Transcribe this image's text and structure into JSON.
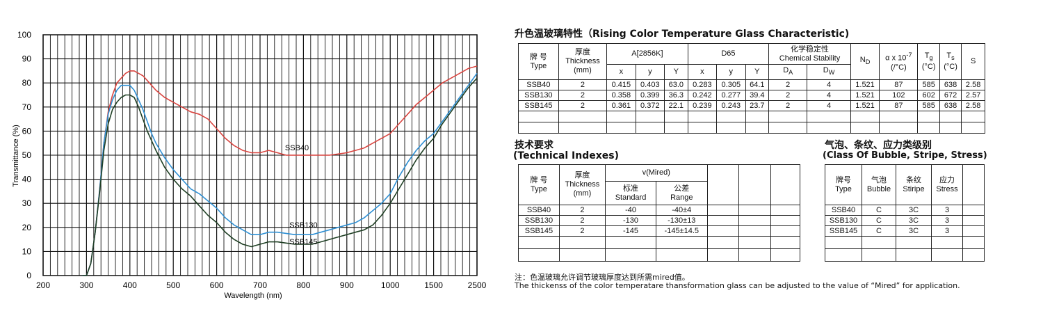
{
  "chart_data": {
    "type": "line",
    "xlabel": "Wavelength (nm)",
    "ylabel": "Transmittance (%)",
    "x_ticks": [
      "200",
      "300",
      "400",
      "500",
      "600",
      "700",
      "800",
      "900",
      "1000",
      "1500",
      "2500"
    ],
    "y_ticks": [
      "0",
      "10",
      "20",
      "30",
      "40",
      "50",
      "60",
      "70",
      "80",
      "90",
      "100"
    ],
    "ylim": [
      0,
      100
    ],
    "grid": true,
    "series": [
      {
        "name": "SSB40",
        "color": "#d9443f",
        "label_at": [
          785,
          52
        ],
        "x": [
          290,
          300,
          310,
          320,
          330,
          340,
          350,
          360,
          370,
          380,
          390,
          400,
          410,
          420,
          430,
          440,
          450,
          460,
          480,
          500,
          520,
          540,
          560,
          580,
          600,
          620,
          640,
          660,
          680,
          700,
          720,
          740,
          760,
          780,
          800,
          820,
          840,
          860,
          880,
          900,
          920,
          940,
          960,
          980,
          1000,
          1100,
          1200,
          1300,
          1400,
          1500,
          1700,
          1900,
          2100,
          2300,
          2500
        ],
        "y": [
          0,
          0,
          5,
          18,
          35,
          55,
          68,
          75,
          80,
          82,
          84,
          85,
          85,
          84,
          83,
          81,
          79,
          77,
          74,
          72,
          70,
          68,
          67,
          65,
          61,
          57,
          54,
          52,
          51,
          51,
          52,
          51,
          50,
          50,
          50,
          50,
          50,
          50,
          50.5,
          51,
          52,
          53,
          55,
          57,
          59,
          63,
          67,
          71,
          74,
          77,
          80,
          82,
          84,
          86,
          87
        ]
      },
      {
        "name": "SSB130",
        "color": "#2e8fd3",
        "label_at": [
          800,
          20
        ],
        "x": [
          290,
          300,
          310,
          320,
          330,
          340,
          350,
          360,
          370,
          380,
          390,
          400,
          410,
          420,
          430,
          440,
          450,
          460,
          480,
          500,
          520,
          540,
          560,
          580,
          600,
          620,
          640,
          660,
          680,
          700,
          720,
          740,
          760,
          780,
          800,
          820,
          840,
          860,
          880,
          900,
          920,
          940,
          960,
          980,
          1000,
          1100,
          1200,
          1300,
          1400,
          1500,
          1700,
          1900,
          2100,
          2300,
          2500
        ],
        "y": [
          0,
          0,
          5,
          18,
          35,
          55,
          67,
          73,
          77,
          79,
          79,
          79,
          77,
          73,
          69,
          64,
          59,
          55,
          49,
          44,
          40,
          36,
          34,
          31,
          28,
          24,
          21,
          19,
          17,
          17,
          18,
          18,
          17.5,
          17,
          17,
          17,
          18,
          19,
          20,
          21,
          22,
          24,
          27,
          30,
          34,
          41,
          47,
          52,
          56,
          59,
          64,
          69,
          74,
          79,
          84
        ]
      },
      {
        "name": "SSB145",
        "color": "#1f3f24",
        "label_at": [
          800,
          13
        ],
        "x": [
          290,
          300,
          310,
          320,
          330,
          340,
          350,
          360,
          370,
          380,
          390,
          400,
          410,
          420,
          430,
          440,
          450,
          460,
          480,
          500,
          520,
          540,
          560,
          580,
          600,
          620,
          640,
          660,
          680,
          700,
          720,
          740,
          760,
          780,
          800,
          820,
          840,
          860,
          880,
          900,
          920,
          940,
          960,
          980,
          1000,
          1100,
          1200,
          1300,
          1400,
          1500,
          1700,
          1900,
          2100,
          2300,
          2500
        ],
        "y": [
          0,
          0,
          5,
          18,
          34,
          52,
          63,
          69,
          72,
          74,
          75,
          75,
          74,
          70,
          65,
          60,
          56,
          52,
          45,
          40,
          36,
          33,
          29,
          25,
          22,
          18,
          15,
          13,
          12,
          13,
          14,
          14,
          13.5,
          13,
          13,
          13,
          14,
          15,
          16,
          17,
          18,
          19,
          21,
          25,
          30,
          36,
          42,
          48,
          53,
          57,
          63,
          68,
          73,
          78,
          82
        ]
      }
    ]
  },
  "t1": {
    "title": "升色温玻璃特性（Rising Color Temperature Glass Characteristic)",
    "h_type": [
      "牌 号",
      "Type"
    ],
    "h_thick": [
      "厚度",
      "Thickness",
      "(mm)"
    ],
    "h_a": "A[2856K]",
    "h_d65": "D65",
    "h_chem": [
      "化学稳定性",
      "Chemical Stability"
    ],
    "h_nd": "N",
    "h_nd_sub": "D",
    "h_alpha": "α x 10",
    "h_alpha_sup": "-7",
    "h_alpha_unit": "(/°C)",
    "h_tg": "T",
    "h_tg_sub": "g",
    "h_tg_unit": "(°C)",
    "h_ts": "T",
    "h_ts_sub": "s",
    "h_ts_unit": "(°C)",
    "h_s": "S",
    "sub": {
      "x": "x",
      "y": "y",
      "Y": "Y",
      "da": "D",
      "da_sub": "A",
      "dw": "D",
      "dw_sub": "W"
    },
    "rows": [
      [
        "SSB40",
        "2",
        "0.415",
        "0.403",
        "63.0",
        "0.283",
        "0.305",
        "64.1",
        "2",
        "4",
        "1.521",
        "87",
        "585",
        "638",
        "2.58"
      ],
      [
        "SSB130",
        "2",
        "0.358",
        "0.399",
        "36.3",
        "0.242",
        "0.277",
        "39.4",
        "2",
        "4",
        "1.521",
        "102",
        "602",
        "672",
        "2.57"
      ],
      [
        "SSB145",
        "2",
        "0.361",
        "0.372",
        "22.1",
        "0.239",
        "0.243",
        "23.7",
        "2",
        "4",
        "1.521",
        "87",
        "585",
        "638",
        "2.58"
      ]
    ]
  },
  "t2": {
    "title_cn": "技术要求",
    "title_en": "(Technical Indexes)",
    "h_type": [
      "牌 号",
      "Type"
    ],
    "h_thick": [
      "厚度",
      "Thickness",
      "(mm)"
    ],
    "h_v": "v(Mired)",
    "h_std": [
      "标准",
      "Standard"
    ],
    "h_range": [
      "公差",
      "Range"
    ],
    "rows": [
      [
        "SSB40",
        "2",
        "-40",
        "-40±4"
      ],
      [
        "SSB130",
        "2",
        "-130",
        "-130±13"
      ],
      [
        "SSB145",
        "2",
        "-145",
        "-145±14.5"
      ]
    ]
  },
  "t3": {
    "title_cn": "气泡、条纹、应力类级别",
    "title_en": "(Class Of Bubble, Stripe, Stress)",
    "h_type": [
      "牌号",
      "Type"
    ],
    "h_bubble": [
      "气泡",
      "Bubble"
    ],
    "h_stripe": [
      "条纹",
      "Stiripe"
    ],
    "h_stress": [
      "应力",
      "Stress"
    ],
    "rows": [
      [
        "SSB40",
        "C",
        "3C",
        "3"
      ],
      [
        "SSB130",
        "C",
        "3C",
        "3"
      ],
      [
        "SSB145",
        "C",
        "3C",
        "3"
      ]
    ]
  },
  "note_cn": "注：色温玻璃允许调节玻璃厚度达到所需mired值。",
  "note_en": "The thickenss of the color temperatare thansformation glass can be adjusted to the value of  “Mired” for application."
}
